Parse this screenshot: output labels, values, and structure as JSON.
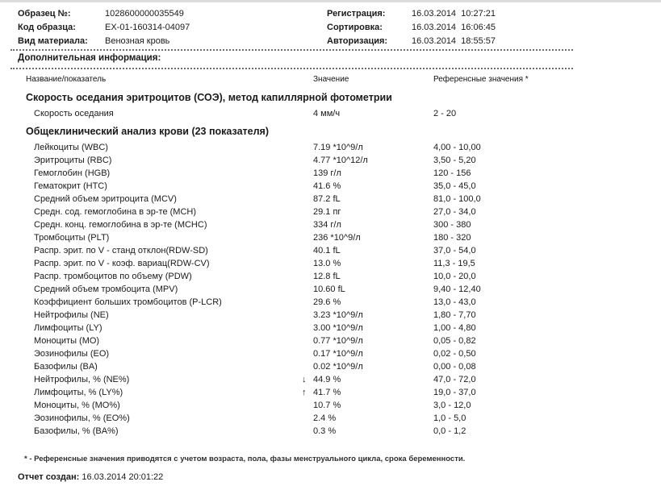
{
  "header": {
    "left": [
      {
        "label": "Образец №:",
        "value": "1028600000035549"
      },
      {
        "label": "Код образца:",
        "value": "EX-01-160314-04097"
      },
      {
        "label": "Вид материала:",
        "value": "Венозная кровь"
      }
    ],
    "right": [
      {
        "label": "Регистрация:",
        "value": "16.03.2014  10:27:21"
      },
      {
        "label": "Сортировка:",
        "value": "16.03.2014  16:06:45"
      },
      {
        "label": "Авторизация:",
        "value": "16.03.2014  18:55:57"
      }
    ]
  },
  "additional_info_label": "Дополнительная информация:",
  "table": {
    "columns": [
      "Название/показатель",
      "Значение",
      "Референсные значения *"
    ],
    "sections": [
      {
        "title": "Скорость оседания эритроцитов (СОЭ), метод капиллярной фотометрии",
        "rows": [
          {
            "name": "Скорость оседания",
            "flag": "",
            "value": "4 мм/ч",
            "reference": "2 - 20"
          }
        ]
      },
      {
        "title": "Общеклинический анализ крови (23 показателя)",
        "rows": [
          {
            "name": "Лейкоциты (WBC)",
            "flag": "",
            "value": "7.19 *10^9/л",
            "reference": "4,00 - 10,00"
          },
          {
            "name": "Эритроциты (RBC)",
            "flag": "",
            "value": "4.77 *10^12/л",
            "reference": "3,50 - 5,20"
          },
          {
            "name": "Гемоглобин (HGB)",
            "flag": "",
            "value": "139 г/л",
            "reference": "120 - 156"
          },
          {
            "name": "Гематокрит (HTC)",
            "flag": "",
            "value": "41.6 %",
            "reference": "35,0 - 45,0"
          },
          {
            "name": "Средний объем эритроцита (MCV)",
            "flag": "",
            "value": "87.2 fL",
            "reference": "81,0 - 100,0"
          },
          {
            "name": "Средн. сод. гемоглобина в эр-те (MCH)",
            "flag": "",
            "value": "29.1 пг",
            "reference": "27,0 - 34,0"
          },
          {
            "name": "Средн. конц. гемоглобина в эр-те (MCHC)",
            "flag": "",
            "value": "334 г/л",
            "reference": "300 - 380"
          },
          {
            "name": "Тромбоциты (PLT)",
            "flag": "",
            "value": "236 *10^9/л",
            "reference": "180 - 320"
          },
          {
            "name": "Распр. эрит. по V - станд отклон(RDW-SD)",
            "flag": "",
            "value": "40.1 fL",
            "reference": "37,0 - 54,0"
          },
          {
            "name": "Распр. эрит. по V - коэф. вариац(RDW-CV)",
            "flag": "",
            "value": "13.0 %",
            "reference": "11,3 - 19,5"
          },
          {
            "name": "Распр. тромбоцитов по объему (PDW)",
            "flag": "",
            "value": "12.8 fL",
            "reference": "10,0 - 20,0"
          },
          {
            "name": "Средний объем тромбоцита (MPV)",
            "flag": "",
            "value": "10.60 fL",
            "reference": "9,40 - 12,40"
          },
          {
            "name": "Коэффициент больших тромбоцитов (P-LCR)",
            "flag": "",
            "value": "29.6 %",
            "reference": "13,0 - 43,0"
          },
          {
            "name": "Нейтрофилы (NE)",
            "flag": "",
            "value": "3.23 *10^9/л",
            "reference": "1,80 - 7,70"
          },
          {
            "name": "Лимфоциты (LY)",
            "flag": "",
            "value": "3.00 *10^9/л",
            "reference": "1,00 - 4,80"
          },
          {
            "name": "Моноциты (MO)",
            "flag": "",
            "value": "0.77 *10^9/л",
            "reference": "0,05 - 0,82"
          },
          {
            "name": "Эозинофилы (EO)",
            "flag": "",
            "value": "0.17 *10^9/л",
            "reference": "0,02 - 0,50"
          },
          {
            "name": "Базофилы (BA)",
            "flag": "",
            "value": "0.02 *10^9/л",
            "reference": "0,00 - 0,08"
          },
          {
            "name": "Нейтрофилы, % (NE%)",
            "flag": "↓",
            "value": "44.9 %",
            "reference": "47,0 - 72,0"
          },
          {
            "name": "Лимфоциты, % (LY%)",
            "flag": "↑",
            "value": "41.7 %",
            "reference": "19,0 - 37,0"
          },
          {
            "name": "Моноциты, % (MO%)",
            "flag": "",
            "value": "10.7 %",
            "reference": "3,0 - 12,0"
          },
          {
            "name": "Эозинофилы, % (EO%)",
            "flag": "",
            "value": "2.4 %",
            "reference": "1,0 - 5,0"
          },
          {
            "name": "Базофилы, % (BA%)",
            "flag": "",
            "value": "0.3 %",
            "reference": "0,0 - 1,2"
          }
        ]
      }
    ]
  },
  "footnote": "* - Референсные значения приводятся с учетом возраста, пола, фазы менструального цикла, срока беременности.",
  "footer": {
    "label": "Отчет создан:",
    "value": " 16.03.2014 20:01:22"
  }
}
